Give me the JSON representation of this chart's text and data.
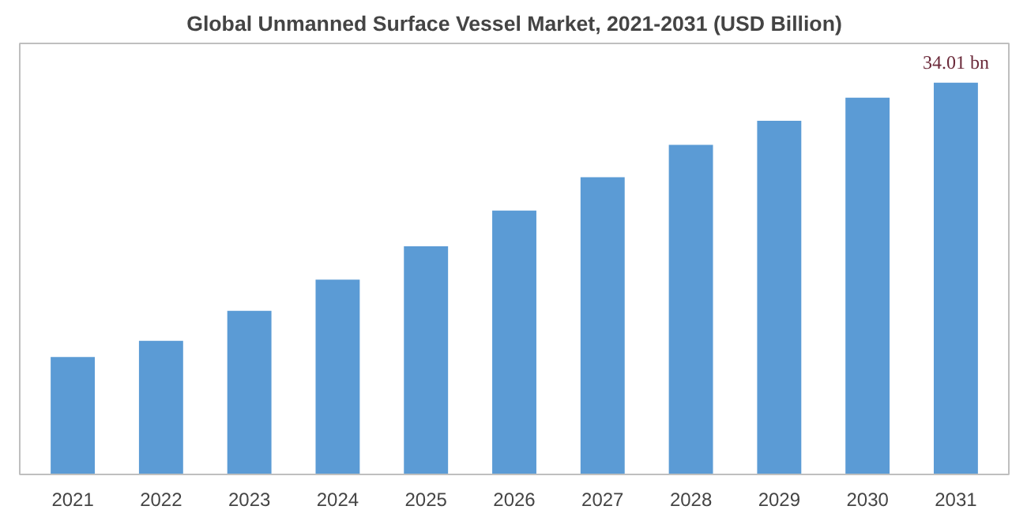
{
  "chart_data": {
    "type": "bar",
    "title": "Global Unmanned Surface Vessel Market, 2021-2031 (USD Billion)",
    "categories": [
      "2021",
      "2022",
      "2023",
      "2024",
      "2025",
      "2026",
      "2027",
      "2028",
      "2029",
      "2030",
      "2031"
    ],
    "values": [
      10.2,
      11.6,
      14.2,
      16.9,
      19.8,
      22.9,
      25.8,
      28.6,
      30.7,
      32.7,
      34.01
    ],
    "value_labels": [
      null,
      null,
      null,
      null,
      null,
      null,
      null,
      null,
      null,
      null,
      "34.01 bn"
    ],
    "color": "#5b9bd5",
    "grid": false
  }
}
